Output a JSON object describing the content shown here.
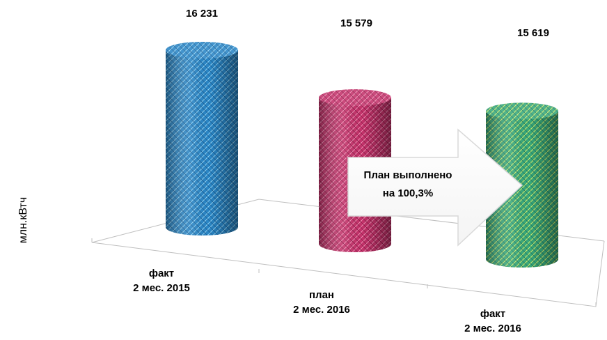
{
  "chart_data": {
    "type": "bar",
    "title": "",
    "ylabel": "млн.кВтч",
    "xlabel": "",
    "categories": [
      [
        "факт",
        "2 мес.  2015"
      ],
      [
        "план",
        "2 мес.  2016"
      ],
      [
        "факт",
        "2 мес.  2016"
      ]
    ],
    "values": [
      16231,
      15579,
      15619
    ],
    "value_labels": [
      "16 231",
      "15 579",
      "15 619"
    ],
    "series_colors": [
      "#2a86c6",
      "#c4336b",
      "#3aa97a"
    ],
    "grid": false,
    "legend": "none"
  },
  "callout": {
    "lines": [
      "План выполнено",
      "на 100,3%"
    ]
  }
}
